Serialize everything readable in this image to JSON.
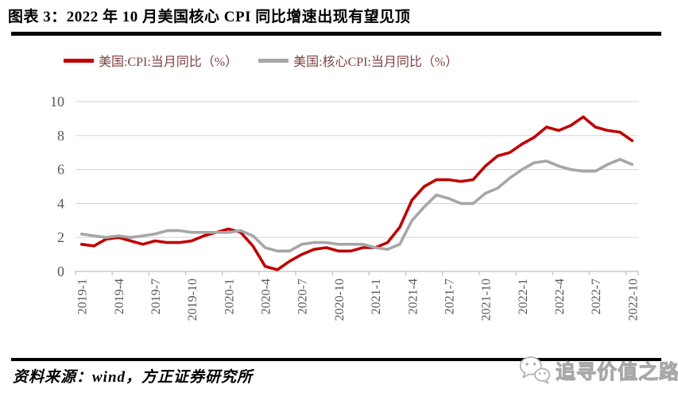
{
  "header": {
    "title": "图表 3：2022 年 10 月美国核心 CPI 同比增速出现有望见顶"
  },
  "footer": {
    "source_note": "资料来源：wind，方正证券研究所",
    "watermark": {
      "icon": "wechat-icon",
      "text": "追寻价值之路"
    }
  },
  "colors": {
    "cpi_line": "#c00000",
    "core_cpi_line": "#a6a6a6",
    "grid": "#d9d9d9",
    "axis": "#bfbfbf",
    "tick_label": "#595959",
    "legend_text": "#7f4040",
    "rule": "#000000",
    "watermark": "#a8a8a8"
  },
  "chart_data": {
    "type": "line",
    "title": "",
    "xlabel": "",
    "ylabel": "",
    "ylim": [
      0,
      10
    ],
    "yticks": [
      0,
      2,
      4,
      6,
      8,
      10
    ],
    "grid": true,
    "legend_position": "top",
    "x_label_rotation": -90,
    "x_tick_every": 3,
    "x": [
      "2019-1",
      "2019-2",
      "2019-3",
      "2019-4",
      "2019-5",
      "2019-6",
      "2019-7",
      "2019-8",
      "2019-9",
      "2019-10",
      "2019-11",
      "2019-12",
      "2020-1",
      "2020-2",
      "2020-3",
      "2020-4",
      "2020-5",
      "2020-6",
      "2020-7",
      "2020-8",
      "2020-9",
      "2020-10",
      "2020-11",
      "2020-12",
      "2021-1",
      "2021-2",
      "2021-3",
      "2021-4",
      "2021-5",
      "2021-6",
      "2021-7",
      "2021-8",
      "2021-9",
      "2021-10",
      "2021-11",
      "2021-12",
      "2022-1",
      "2022-2",
      "2022-3",
      "2022-4",
      "2022-5",
      "2022-6",
      "2022-7",
      "2022-8",
      "2022-9",
      "2022-10"
    ],
    "x_tick_labels": [
      "2019-1",
      "2019-4",
      "2019-7",
      "2019-10",
      "2020-1",
      "2020-4",
      "2020-7",
      "2020-10",
      "2021-1",
      "2021-4",
      "2021-7",
      "2021-10",
      "2022-1",
      "2022-4",
      "2022-7",
      "2022-10"
    ],
    "series": [
      {
        "name": "美国:CPI:当月同比（%）",
        "color": "#c00000",
        "values": [
          1.6,
          1.5,
          1.9,
          2.0,
          1.8,
          1.6,
          1.8,
          1.7,
          1.7,
          1.8,
          2.1,
          2.3,
          2.5,
          2.3,
          1.5,
          0.3,
          0.1,
          0.6,
          1.0,
          1.3,
          1.4,
          1.2,
          1.2,
          1.4,
          1.4,
          1.7,
          2.6,
          4.2,
          5.0,
          5.4,
          5.4,
          5.3,
          5.4,
          6.2,
          6.8,
          7.0,
          7.5,
          7.9,
          8.5,
          8.3,
          8.6,
          9.1,
          8.5,
          8.3,
          8.2,
          7.7
        ]
      },
      {
        "name": "美国:核心CPI:当月同比（%）",
        "color": "#a6a6a6",
        "values": [
          2.2,
          2.1,
          2.0,
          2.1,
          2.0,
          2.1,
          2.2,
          2.4,
          2.4,
          2.3,
          2.3,
          2.3,
          2.3,
          2.4,
          2.1,
          1.4,
          1.2,
          1.2,
          1.6,
          1.7,
          1.7,
          1.6,
          1.6,
          1.6,
          1.4,
          1.3,
          1.6,
          3.0,
          3.8,
          4.5,
          4.3,
          4.0,
          4.0,
          4.6,
          4.9,
          5.5,
          6.0,
          6.4,
          6.5,
          6.2,
          6.0,
          5.9,
          5.9,
          6.3,
          6.6,
          6.3
        ]
      }
    ]
  }
}
